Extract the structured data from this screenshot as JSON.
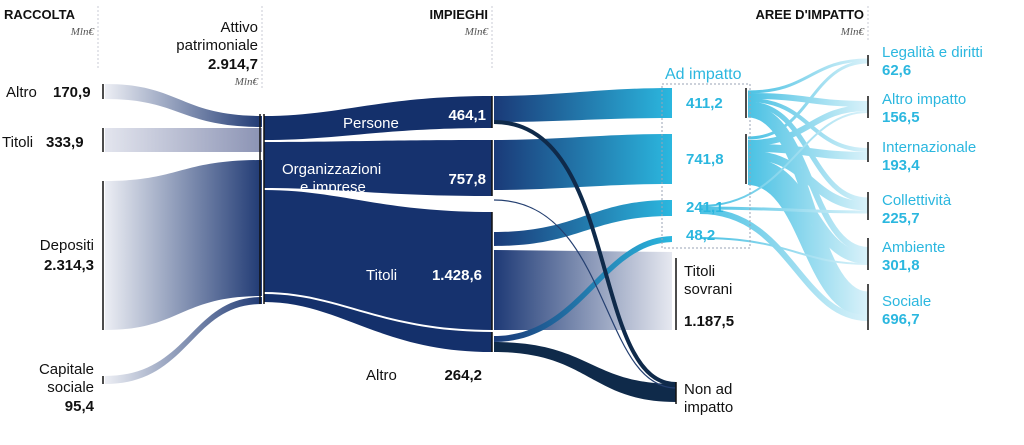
{
  "headers": {
    "raccolta": "RACCOLTA",
    "raccolta_unit": "Mln€",
    "attivo_line1": "Attivo",
    "attivo_line2": "patrimoniale",
    "attivo_value": "2.914,7",
    "attivo_unit": "Mln€",
    "impieghi": "IMPIEGHI",
    "impieghi_unit": "Mln€",
    "aree": "AREE D'IMPATTO",
    "aree_unit": "Mln€"
  },
  "sources": {
    "altro": {
      "label": "Altro",
      "value": "170,9"
    },
    "titoli": {
      "label": "Titoli",
      "value": "333,9"
    },
    "depositi": {
      "label": "Depositi",
      "value": "2.314,3"
    },
    "capitale": {
      "label1": "Capitale",
      "label2": "sociale",
      "value": "95,4"
    }
  },
  "uses": {
    "persone": {
      "label": "Persone",
      "value": "464,1"
    },
    "organizzazioni": {
      "label1": "Organizzazioni",
      "label2": "e imprese",
      "value": "757,8"
    },
    "titoli": {
      "label": "Titoli",
      "value": "1.428,6"
    },
    "altro": {
      "label": "Altro",
      "value": "264,2"
    }
  },
  "impact": {
    "group_label": "Ad impatto",
    "v1": "411,2",
    "v2": "741,8",
    "v3": "241,1",
    "v4": "48,2",
    "titoli_sovrani_1": "Titoli",
    "titoli_sovrani_2": "sovrani",
    "titoli_sovrani_value": "1.187,5",
    "non_ad_1": "Non ad",
    "non_ad_2": "impatto"
  },
  "areas": [
    {
      "label": "Legalità e diritti",
      "value": "62,6"
    },
    {
      "label": "Altro impatto",
      "value": "156,5"
    },
    {
      "label": "Internazionale",
      "value": "193,4"
    },
    {
      "label": "Collettività",
      "value": "225,7"
    },
    {
      "label": "Ambiente",
      "value": "301,8"
    },
    {
      "label": "Sociale",
      "value": "696,7"
    }
  ],
  "colors": {
    "navy": "#14306b",
    "dark_navy": "#0f2a4a",
    "cyan": "#2bb7df",
    "source_gray": "#d9dbe4"
  }
}
